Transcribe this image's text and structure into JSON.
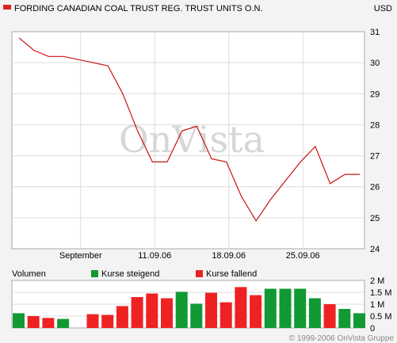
{
  "header": {
    "title": "FORDING CANADIAN COAL TRUST REG. TRUST UNITS O.N.",
    "currency": "USD",
    "title_marker_color": "#dd2222"
  },
  "watermark": "OnVista",
  "copyright": "© 1999-2006 OnVista Gruppe",
  "legend": {
    "volume_label": "Volumen",
    "rising_label": "Kurse steigend",
    "falling_label": "Kurse fallend",
    "rising_color": "#119933",
    "falling_color": "#ee2222"
  },
  "chart_data": [
    {
      "type": "line",
      "series": [
        {
          "color": "#cc1111",
          "values": [
            30.8,
            30.4,
            30.2,
            30.2,
            30.1,
            30.0,
            29.9,
            29.0,
            27.8,
            26.8,
            26.8,
            27.8,
            27.95,
            26.9,
            26.8,
            25.7,
            24.9,
            25.6,
            26.2,
            26.8,
            27.3,
            26.1,
            26.4,
            26.4
          ]
        }
      ],
      "x_tick_labels": [
        "September",
        "11.09.06",
        "18.09.06",
        "25.09.06"
      ],
      "y_ticks": [
        24,
        25,
        26,
        27,
        28,
        29,
        30,
        31
      ],
      "ylim": [
        24,
        31
      ],
      "grid": true
    },
    {
      "type": "bar",
      "values": [
        0.62,
        0.5,
        0.42,
        0.38,
        0,
        0.58,
        0.55,
        0.92,
        1.3,
        1.45,
        1.25,
        1.52,
        1.02,
        1.48,
        1.08,
        1.72,
        1.38,
        1.65,
        1.65,
        1.65,
        1.25,
        1.0,
        0.8,
        0.62
      ],
      "directions": [
        "up",
        "down",
        "down",
        "up",
        "none",
        "down",
        "down",
        "down",
        "down",
        "down",
        "down",
        "up",
        "up",
        "down",
        "down",
        "down",
        "down",
        "up",
        "up",
        "up",
        "up",
        "down",
        "up",
        "up"
      ],
      "y_tick_labels": [
        "2 M",
        "1.5 M",
        "1 M",
        "0.5 M",
        "0"
      ],
      "ylim": [
        0,
        2
      ],
      "grid": true
    }
  ]
}
